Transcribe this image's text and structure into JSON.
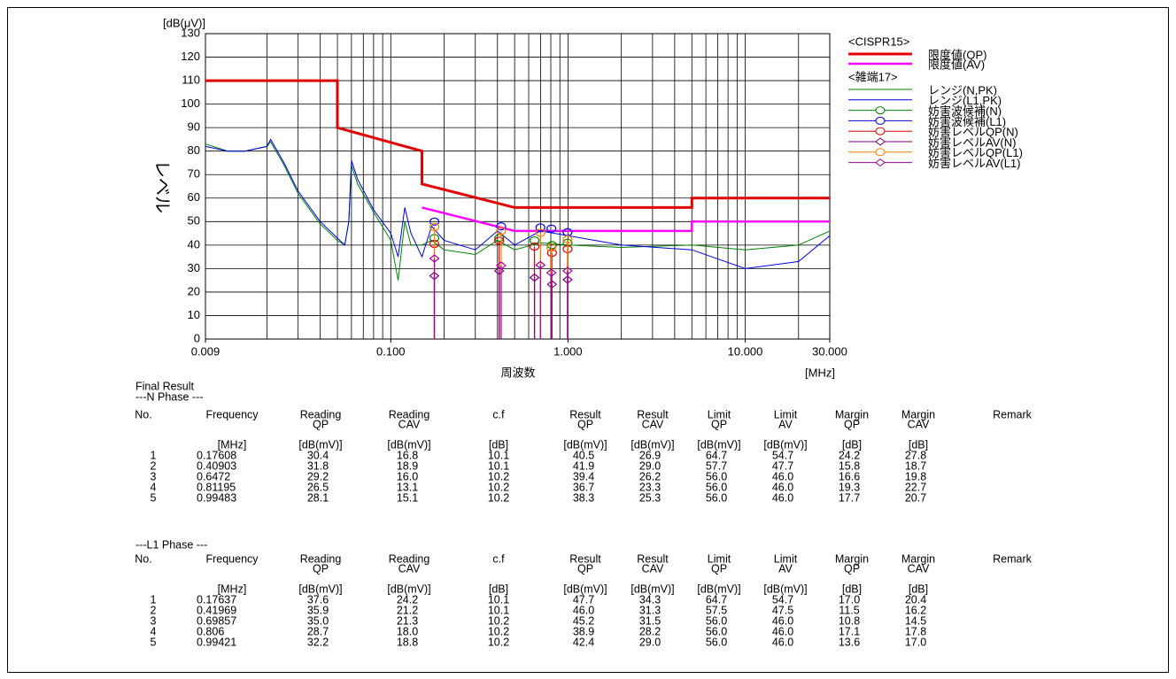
{
  "chart_data": {
    "type": "line",
    "ylabel": "レベル",
    "yunit": "[dB(μV)]",
    "xlabel": "周波数",
    "xunit": "[MHz]",
    "xscale": "log",
    "grid": true,
    "xlim": [
      0.009,
      30
    ],
    "ylim": [
      0,
      130
    ],
    "xticks": [
      {
        "value": 0.009,
        "label": "0.009"
      },
      {
        "value": 0.1,
        "label": "0.100"
      },
      {
        "value": 1,
        "label": "1.000"
      },
      {
        "value": 10,
        "label": "10.000"
      },
      {
        "value": 30,
        "label": "30.000"
      }
    ],
    "xgrid": [
      0.02,
      0.03,
      0.04,
      0.05,
      0.06,
      0.07,
      0.08,
      0.09,
      0.1,
      0.2,
      0.3,
      0.4,
      0.5,
      0.6,
      0.7,
      0.8,
      0.9,
      1,
      2,
      3,
      4,
      5,
      6,
      7,
      8,
      9,
      10,
      20
    ],
    "yticks": [
      0,
      10,
      20,
      30,
      40,
      50,
      60,
      70,
      80,
      90,
      100,
      110,
      120,
      130
    ],
    "groups": [
      {
        "title": "<CISPR15>",
        "series": [
          {
            "name": "限度値(QP)",
            "color": "#e00000",
            "width": 3,
            "x": [
              0.009,
              0.05,
              0.05,
              0.15,
              0.15,
              0.5,
              5,
              5,
              30
            ],
            "y": [
              110,
              110,
              90,
              80,
              66,
              56,
              56,
              60,
              60
            ]
          },
          {
            "name": "限度値(AV)",
            "color": "#ff00ff",
            "width": 2.5,
            "x": [
              0.15,
              0.5,
              5,
              5,
              30
            ],
            "y": [
              56,
              46,
              46,
              50,
              50
            ]
          }
        ]
      },
      {
        "title": "<雑端17>",
        "series": [
          {
            "name": "レンジ(N,PK)",
            "color": "#008000",
            "width": 1,
            "x": [
              0.009,
              0.012,
              0.015,
              0.02,
              0.021,
              0.025,
              0.03,
              0.04,
              0.05,
              0.055,
              0.058,
              0.06,
              0.065,
              0.08,
              0.1,
              0.11,
              0.12,
              0.13,
              0.15,
              0.17,
              0.2,
              0.3,
              0.4,
              0.5,
              0.7,
              1,
              2,
              5,
              10,
              20,
              30
            ],
            "y": [
              83,
              80,
              80,
              82,
              84,
              74,
              62,
              49,
              42,
              40,
              50,
              74,
              66,
              54,
              42,
              25,
              50,
              40,
              40,
              42,
              38,
              36,
              42,
              38,
              41,
              40,
              39,
              40,
              38,
              40,
              46
            ]
          },
          {
            "name": "レンジ(L1,PK)",
            "color": "#0000e0",
            "width": 1,
            "x": [
              0.009,
              0.012,
              0.015,
              0.02,
              0.021,
              0.025,
              0.03,
              0.04,
              0.05,
              0.055,
              0.058,
              0.06,
              0.065,
              0.08,
              0.1,
              0.11,
              0.12,
              0.13,
              0.15,
              0.17,
              0.2,
              0.3,
              0.4,
              0.5,
              0.7,
              1,
              2,
              5,
              10,
              20,
              30
            ],
            "y": [
              82,
              80,
              80,
              82,
              85,
              75,
              63,
              50,
              43,
              40,
              50,
              76,
              68,
              55,
              45,
              35,
              56,
              45,
              35,
              48,
              42,
              38,
              46,
              40,
              46,
              44,
              40,
              38,
              30,
              33,
              44
            ]
          },
          {
            "name": "妨害波候補(N)",
            "color": "#008000",
            "marker": "circle",
            "x": [
              0.17608,
              0.40903,
              0.6472,
              0.81195,
              0.99483
            ],
            "y": [
              43,
              43,
              42,
              40,
              41
            ]
          },
          {
            "name": "妨害波候補(L1)",
            "color": "#0000e0",
            "marker": "circle",
            "x": [
              0.17637,
              0.41969,
              0.69857,
              0.806,
              0.99421
            ],
            "y": [
              50,
              48,
              47.5,
              47,
              45.5
            ]
          },
          {
            "name": "妨害レベルQP(N)",
            "color": "#e00000",
            "marker": "circle",
            "stem": true,
            "x": [
              0.17608,
              0.40903,
              0.6472,
              0.81195,
              0.99483
            ],
            "y": [
              40.5,
              41.9,
              39.4,
              36.7,
              38.3
            ]
          },
          {
            "name": "妨害レベルAV(N)",
            "color": "#800080",
            "marker": "diamond",
            "stem": true,
            "x": [
              0.17608,
              0.40903,
              0.6472,
              0.81195,
              0.99483
            ],
            "y": [
              26.9,
              29.0,
              26.2,
              23.3,
              25.3
            ]
          },
          {
            "name": "妨害レベルQP(L1)",
            "color": "#ff8000",
            "marker": "circle",
            "stem": true,
            "x": [
              0.17637,
              0.41969,
              0.69857,
              0.806,
              0.99421
            ],
            "y": [
              47.7,
              46.0,
              45.2,
              38.9,
              42.4
            ]
          },
          {
            "name": "妨害レベルAV(L1)",
            "color": "#a000a0",
            "marker": "diamond",
            "stem": true,
            "x": [
              0.17637,
              0.41969,
              0.69857,
              0.806,
              0.99421
            ],
            "y": [
              34.3,
              31.3,
              31.5,
              28.2,
              29.0
            ]
          }
        ]
      }
    ]
  },
  "table": {
    "title": "Final Result",
    "columns": [
      {
        "name": "No."
      },
      {
        "name": "Frequency",
        "unit": "[MHz]"
      },
      {
        "name": "Reading",
        "sub": "QP",
        "unit": "[dB(mV)]"
      },
      {
        "name": "Reading",
        "sub": "CAV",
        "unit": "[dB(mV)]"
      },
      {
        "name": "c.f",
        "unit": "[dB]"
      },
      {
        "name": "Result",
        "sub": "QP",
        "unit": "[dB(mV)]"
      },
      {
        "name": "Result",
        "sub": "CAV",
        "unit": "[dB(mV)]"
      },
      {
        "name": "Limit",
        "sub": "QP",
        "unit": "[dB(mV)]"
      },
      {
        "name": "Limit",
        "sub": "AV",
        "unit": "[dB(mV)]"
      },
      {
        "name": "Margin",
        "sub": "QP",
        "unit": "[dB]"
      },
      {
        "name": "Margin",
        "sub": "CAV",
        "unit": "[dB]"
      },
      {
        "name": "Remark"
      }
    ],
    "sections": [
      {
        "title": "---N Phase ---",
        "rows": [
          [
            "1",
            "0.17608",
            "30.4",
            "16.8",
            "10.1",
            "40.5",
            "26.9",
            "64.7",
            "54.7",
            "24.2",
            "27.8"
          ],
          [
            "2",
            "0.40903",
            "31.8",
            "18.9",
            "10.1",
            "41.9",
            "29.0",
            "57.7",
            "47.7",
            "15.8",
            "18.7"
          ],
          [
            "3",
            "0.6472",
            "29.2",
            "16.0",
            "10.2",
            "39.4",
            "26.2",
            "56.0",
            "46.0",
            "16.6",
            "19.8"
          ],
          [
            "4",
            "0.81195",
            "26.5",
            "13.1",
            "10.2",
            "36.7",
            "23.3",
            "56.0",
            "46.0",
            "19.3",
            "22.7"
          ],
          [
            "5",
            "0.99483",
            "28.1",
            "15.1",
            "10.2",
            "38.3",
            "25.3",
            "56.0",
            "46.0",
            "17.7",
            "20.7"
          ]
        ]
      },
      {
        "title": "---L1 Phase ---",
        "rows": [
          [
            "1",
            "0.17637",
            "37.6",
            "24.2",
            "10.1",
            "47.7",
            "34.3",
            "64.7",
            "54.7",
            "17.0",
            "20.4"
          ],
          [
            "2",
            "0.41969",
            "35.9",
            "21.2",
            "10.1",
            "46.0",
            "31.3",
            "57.5",
            "47.5",
            "11.5",
            "16.2"
          ],
          [
            "3",
            "0.69857",
            "35.0",
            "21.3",
            "10.2",
            "45.2",
            "31.5",
            "56.0",
            "46.0",
            "10.8",
            "14.5"
          ],
          [
            "4",
            "0.806",
            "28.7",
            "18.0",
            "10.2",
            "38.9",
            "28.2",
            "56.0",
            "46.0",
            "17.1",
            "17.8"
          ],
          [
            "5",
            "0.99421",
            "32.2",
            "18.8",
            "10.2",
            "42.4",
            "29.0",
            "56.0",
            "46.0",
            "13.6",
            "17.0"
          ]
        ]
      }
    ]
  }
}
